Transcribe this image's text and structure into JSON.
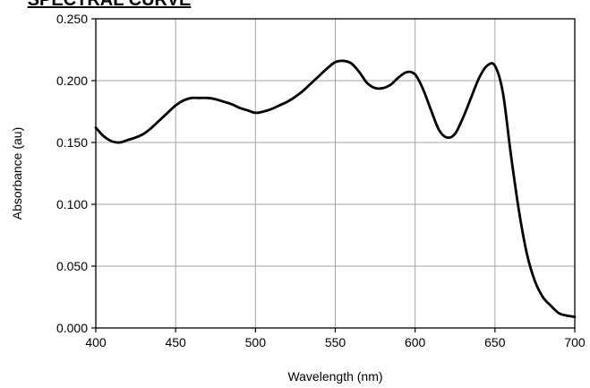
{
  "chart_data": {
    "type": "line",
    "title": "SPECTRAL CURVE",
    "xlabel": "Wavelength (nm)",
    "ylabel": "Absorbance (au)",
    "xlim": [
      400,
      700
    ],
    "ylim": [
      0,
      0.25
    ],
    "grid": true,
    "x_ticks": [
      "400",
      "450",
      "500",
      "550",
      "600",
      "650",
      "700"
    ],
    "y_ticks": [
      "0.000",
      "0.050",
      "0.100",
      "0.150",
      "0.200",
      "0.250"
    ],
    "line_color": "#000000",
    "series": [
      {
        "x": [
          400,
          405,
          410,
          415,
          420,
          425,
          430,
          435,
          440,
          445,
          450,
          455,
          460,
          465,
          470,
          475,
          480,
          485,
          490,
          495,
          500,
          505,
          510,
          515,
          520,
          525,
          530,
          535,
          540,
          545,
          550,
          555,
          560,
          565,
          570,
          575,
          580,
          585,
          590,
          595,
          600,
          605,
          610,
          615,
          620,
          625,
          630,
          635,
          640,
          645,
          650,
          655,
          660,
          665,
          670,
          675,
          680,
          685,
          690,
          695,
          700
        ],
        "y": [
          0.162,
          0.155,
          0.151,
          0.15,
          0.152,
          0.154,
          0.157,
          0.162,
          0.168,
          0.174,
          0.18,
          0.184,
          0.186,
          0.186,
          0.186,
          0.185,
          0.183,
          0.181,
          0.178,
          0.176,
          0.174,
          0.175,
          0.177,
          0.18,
          0.183,
          0.187,
          0.192,
          0.198,
          0.204,
          0.21,
          0.215,
          0.216,
          0.214,
          0.207,
          0.198,
          0.194,
          0.194,
          0.197,
          0.203,
          0.207,
          0.205,
          0.193,
          0.176,
          0.16,
          0.154,
          0.157,
          0.17,
          0.186,
          0.202,
          0.212,
          0.212,
          0.19,
          0.14,
          0.095,
          0.06,
          0.038,
          0.025,
          0.018,
          0.012,
          0.01,
          0.009
        ]
      }
    ]
  }
}
